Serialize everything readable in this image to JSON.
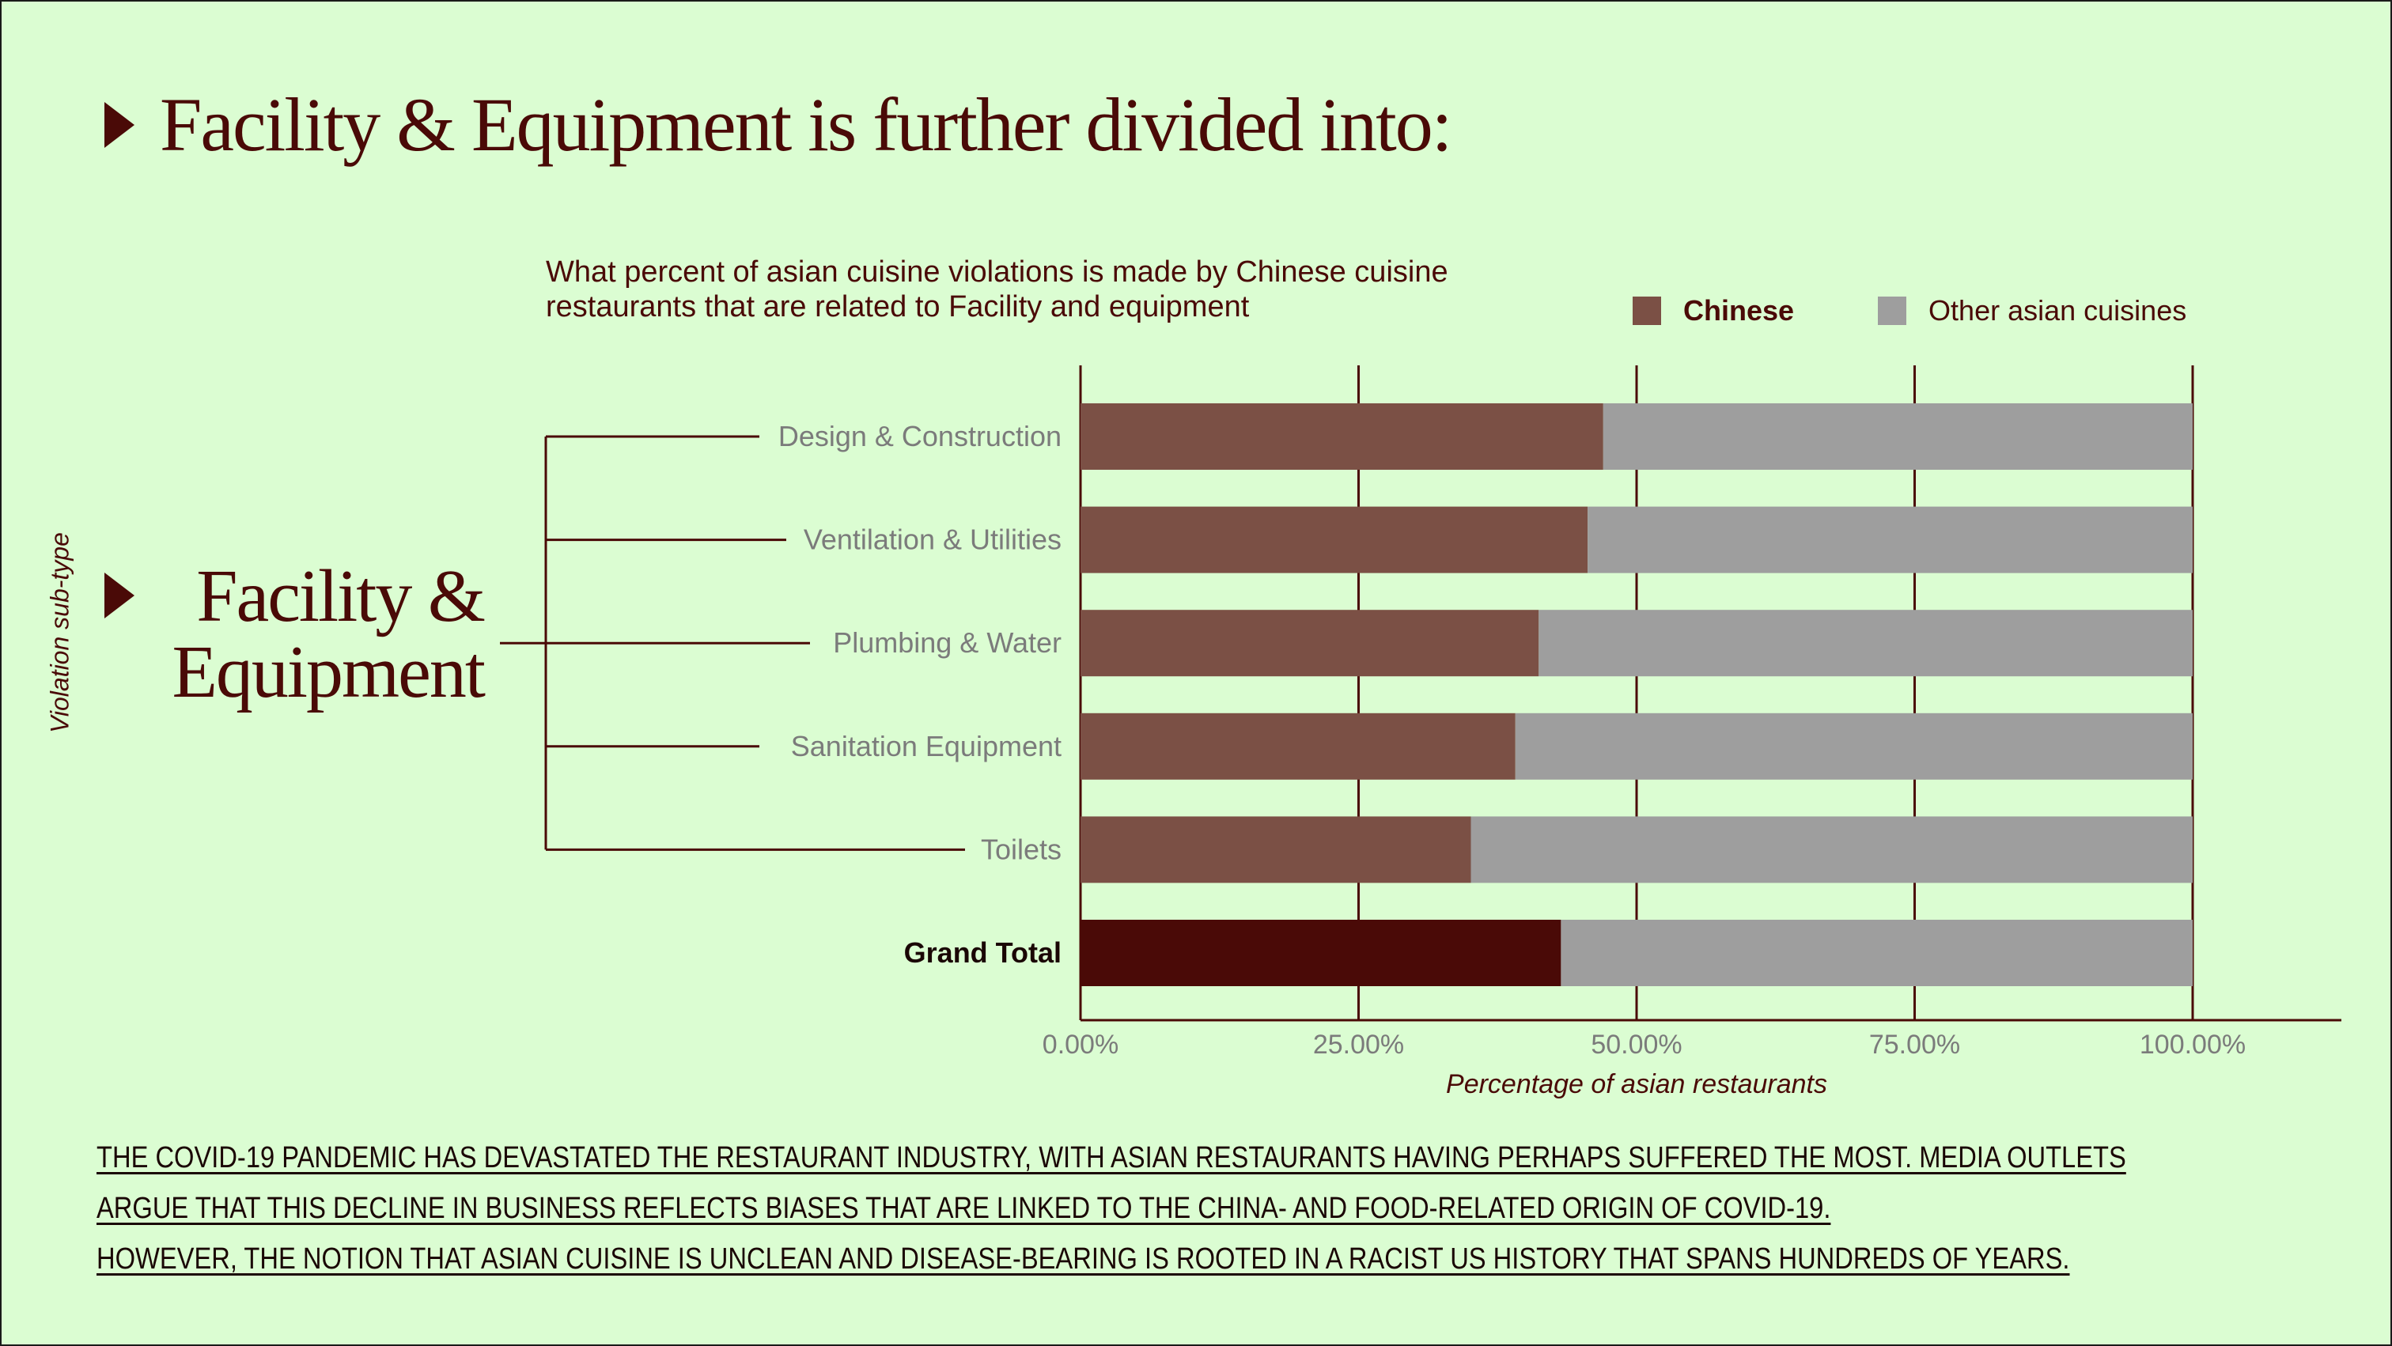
{
  "headline": "Facility & Equipment is further divided into:",
  "category_label_line1": "Facility &",
  "category_label_line2": "Equipment",
  "vertical_axis_label": "Violation sub-type",
  "colors": {
    "background": "#dbfdd2",
    "chinese": "#7b5045",
    "chinese_total": "#4a0a07",
    "other": "#9e9e9e",
    "text_dark": "#4a0a07",
    "tick_text": "#7b7b7b"
  },
  "chart_data": {
    "type": "bar",
    "orientation": "horizontal",
    "stacked": true,
    "title": "What percent of asian cuisine violations is made by Chinese cuisine restaurants that are related to Facility and equipment",
    "title_lines": [
      "What percent of asian cuisine violations is made by Chinese cuisine",
      "restaurants that are related to Facility and equipment"
    ],
    "categories": [
      "Design & Construction",
      "Ventilation & Utilities",
      "Plumbing & Water",
      "Sanitation Equipment",
      "Toilets",
      "Grand Total"
    ],
    "series": [
      {
        "name": "Chinese",
        "values": [
          47.0,
          45.6,
          41.2,
          39.1,
          35.1,
          43.2
        ]
      },
      {
        "name": "Other asian cuisines",
        "values": [
          53.0,
          54.4,
          58.8,
          60.9,
          64.9,
          56.8
        ]
      }
    ],
    "xlabel": "Percentage of asian restaurants",
    "ylabel": "Violation sub-type",
    "xlim": [
      0,
      113
    ],
    "xticks": [
      0,
      25,
      50,
      75,
      100
    ],
    "xtick_labels": [
      "0.00%",
      "25.00%",
      "50.00%",
      "75.00%",
      "100.00%"
    ],
    "grid": true,
    "legend_position": "top-right"
  },
  "footer": {
    "line1": "THE COVID-19 PANDEMIC HAS DEVASTATED THE RESTAURANT INDUSTRY, WITH ASIAN RESTAURANTS HAVING PERHAPS SUFFERED THE MOST. MEDIA OUTLETS",
    "line2": "ARGUE THAT THIS DECLINE IN BUSINESS REFLECTS BIASES THAT ARE LINKED TO THE CHINA- AND FOOD-RELATED ORIGIN OF COVID-19.",
    "line3": "HOWEVER, THE NOTION THAT ASIAN CUISINE IS UNCLEAN AND DISEASE-BEARING IS ROOTED IN A RACIST US HISTORY THAT SPANS HUNDREDS OF YEARS."
  }
}
